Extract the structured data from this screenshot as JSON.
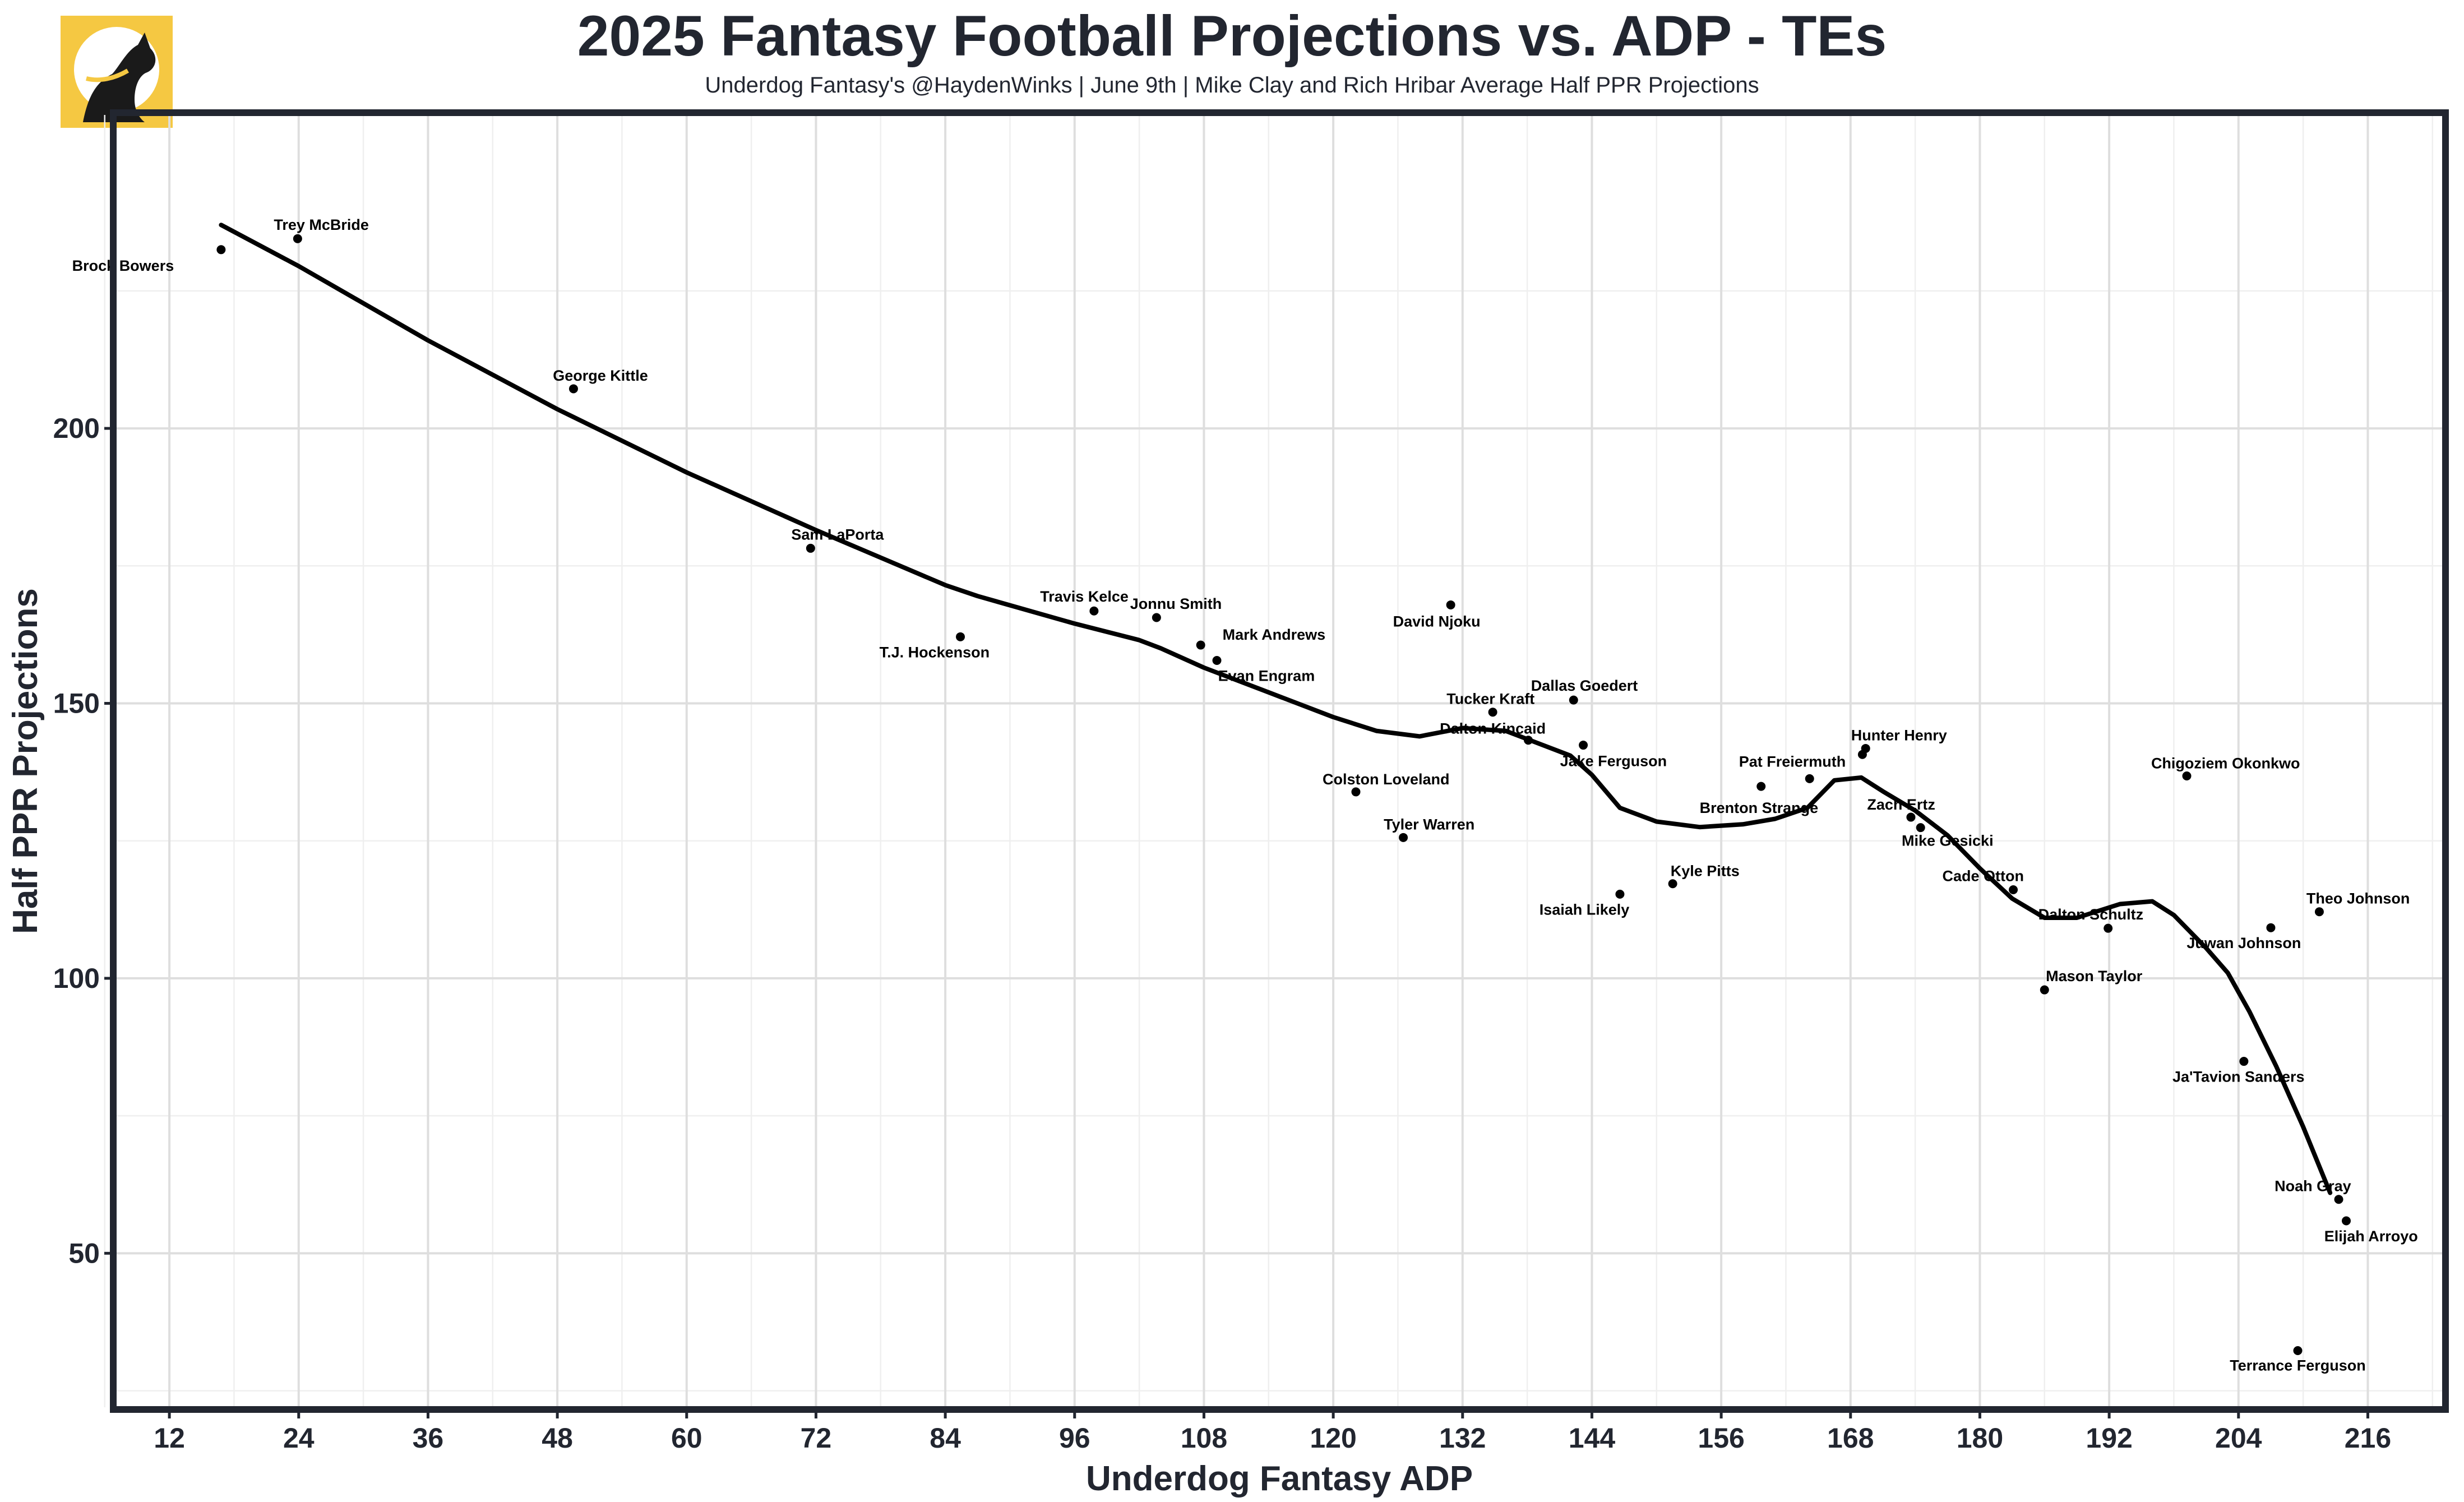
{
  "header": {
    "title": "2025 Fantasy Football Projections vs. ADP - TEs",
    "subtitle": "Underdog Fantasy's @HaydenWinks | June 9th | Mike Clay and Rich Hribar Average Half PPR Projections"
  },
  "logo": {
    "icon": "dog-head-icon",
    "background": "#f5c842",
    "foreground": "#1a1a1a"
  },
  "colors": {
    "frame": "#222630",
    "grid_major": "#dedede",
    "grid_minor": "#efefef",
    "points": "#000000",
    "trend": "#000000"
  },
  "chart_data": {
    "type": "scatter",
    "xlabel": "Underdog Fantasy ADP",
    "ylabel": "Half PPR Projections",
    "xlim": [
      7,
      223
    ],
    "ylim": [
      22,
      257
    ],
    "x_ticks": [
      12,
      24,
      36,
      48,
      60,
      72,
      84,
      96,
      108,
      120,
      132,
      144,
      156,
      168,
      180,
      192,
      204,
      216
    ],
    "y_ticks": [
      50,
      100,
      150,
      200
    ],
    "grid": true,
    "points": [
      {
        "name": "Brock Bowers",
        "x": 16.8,
        "y": 232.5
      },
      {
        "name": "Trey McBride",
        "x": 23.9,
        "y": 234.5
      },
      {
        "name": "George Kittle",
        "x": 49.5,
        "y": 207.2
      },
      {
        "name": "Sam LaPorta",
        "x": 71.5,
        "y": 178.2
      },
      {
        "name": "T.J. Hockenson",
        "x": 85.4,
        "y": 162.1
      },
      {
        "name": "Travis Kelce",
        "x": 97.8,
        "y": 166.8
      },
      {
        "name": "Jonnu Smith",
        "x": 103.6,
        "y": 165.6
      },
      {
        "name": "Mark Andrews",
        "x": 107.7,
        "y": 160.6
      },
      {
        "name": "Evan Engram",
        "x": 109.2,
        "y": 157.8
      },
      {
        "name": "David Njoku",
        "x": 130.9,
        "y": 167.9
      },
      {
        "name": "Colston Loveland",
        "x": 122.1,
        "y": 133.9
      },
      {
        "name": "Tyler Warren",
        "x": 126.5,
        "y": 125.6
      },
      {
        "name": "Tucker Kraft",
        "x": 134.8,
        "y": 148.4
      },
      {
        "name": "Dallas Goedert",
        "x": 142.3,
        "y": 150.6
      },
      {
        "name": "Dalton Kincaid",
        "x": 138.1,
        "y": 143.3
      },
      {
        "name": "Jake Ferguson",
        "x": 143.2,
        "y": 142.4
      },
      {
        "name": "Isaiah Likely",
        "x": 146.6,
        "y": 115.3
      },
      {
        "name": "Kyle Pitts",
        "x": 151.5,
        "y": 117.2
      },
      {
        "name": "Pat Freiermuth",
        "x": 159.7,
        "y": 134.9
      },
      {
        "name": "Brenton Strange",
        "x": 164.2,
        "y": 136.3
      },
      {
        "name": "Hunter Henry",
        "x": 169.4,
        "y": 141.8
      },
      {
        "name": "Hunter Henry 2",
        "x": 169.1,
        "y": 140.7
      },
      {
        "name": "Zach Ertz",
        "x": 173.6,
        "y": 129.3
      },
      {
        "name": "Mike Gesicki",
        "x": 174.5,
        "y": 127.4
      },
      {
        "name": "Cade Otton",
        "x": 183.1,
        "y": 116.1
      },
      {
        "name": "Dalton Schultz",
        "x": 191.9,
        "y": 109.1
      },
      {
        "name": "Mason Taylor",
        "x": 186.0,
        "y": 97.9
      },
      {
        "name": "Chigoziem Okonkwo",
        "x": 199.2,
        "y": 136.8
      },
      {
        "name": "Juwan Johnson",
        "x": 207.0,
        "y": 109.2
      },
      {
        "name": "Theo Johnson",
        "x": 211.5,
        "y": 112.1
      },
      {
        "name": "Ja'Tavion Sanders",
        "x": 204.5,
        "y": 84.9
      },
      {
        "name": "Noah Gray",
        "x": 213.3,
        "y": 59.8
      },
      {
        "name": "Elijah Arroyo",
        "x": 214.0,
        "y": 55.9
      },
      {
        "name": "Terrance Ferguson",
        "x": 209.5,
        "y": 32.3
      }
    ],
    "labels": [
      {
        "text": "Brock Bowers",
        "x": 7.7,
        "y": 229.6
      },
      {
        "text": "Trey McBride",
        "x": 26.1,
        "y": 237.0
      },
      {
        "text": "George Kittle",
        "x": 52.0,
        "y": 209.6
      },
      {
        "text": "Sam LaPorta",
        "x": 74.0,
        "y": 180.7
      },
      {
        "text": "T.J. Hockenson",
        "x": 83.0,
        "y": 159.3
      },
      {
        "text": "Travis Kelce",
        "x": 96.9,
        "y": 169.4
      },
      {
        "text": "Jonnu Smith",
        "x": 105.4,
        "y": 168.1
      },
      {
        "text": "Mark Andrews",
        "x": 114.5,
        "y": 162.5
      },
      {
        "text": "Evan Engram",
        "x": 113.8,
        "y": 155.0
      },
      {
        "text": "David Njoku",
        "x": 129.6,
        "y": 164.9
      },
      {
        "text": "Colston Loveland",
        "x": 124.9,
        "y": 136.2
      },
      {
        "text": "Tyler Warren",
        "x": 128.9,
        "y": 128.0
      },
      {
        "text": "Tucker Kraft",
        "x": 134.6,
        "y": 150.8
      },
      {
        "text": "Dallas Goedert",
        "x": 143.3,
        "y": 153.2
      },
      {
        "text": "Dalton Kincaid",
        "x": 134.8,
        "y": 145.4
      },
      {
        "text": "Jake Ferguson",
        "x": 146.0,
        "y": 139.5
      },
      {
        "text": "Isaiah Likely",
        "x": 143.3,
        "y": 112.5
      },
      {
        "text": "Kyle Pitts",
        "x": 154.5,
        "y": 119.5
      },
      {
        "text": "Pat Freiermuth",
        "x": 162.6,
        "y": 139.4
      },
      {
        "text": "Brenton Strange",
        "x": 159.5,
        "y": 131.0
      },
      {
        "text": "Hunter Henry",
        "x": 172.5,
        "y": 144.2
      },
      {
        "text": "Zach Ertz",
        "x": 172.7,
        "y": 131.6
      },
      {
        "text": "Mike Gesicki",
        "x": 177.0,
        "y": 125.0
      },
      {
        "text": "Cade Otton",
        "x": 180.3,
        "y": 118.6
      },
      {
        "text": "Dalton Schultz",
        "x": 190.3,
        "y": 111.6
      },
      {
        "text": "Mason Taylor",
        "x": 190.6,
        "y": 100.4
      },
      {
        "text": "Chigoziem Okonkwo",
        "x": 202.8,
        "y": 139.1
      },
      {
        "text": "Juwan Johnson",
        "x": 204.5,
        "y": 106.4
      },
      {
        "text": "Theo Johnson",
        "x": 215.1,
        "y": 114.5
      },
      {
        "text": "Ja'Tavion Sanders",
        "x": 204.0,
        "y": 82.1
      },
      {
        "text": "Noah Gray",
        "x": 210.9,
        "y": 62.2
      },
      {
        "text": "Elijah Arroyo",
        "x": 216.3,
        "y": 53.1
      },
      {
        "text": "Terrance Ferguson",
        "x": 209.5,
        "y": 29.6
      }
    ],
    "trend": [
      [
        16.8,
        237.0
      ],
      [
        24,
        229.5
      ],
      [
        36,
        216.0
      ],
      [
        48,
        203.5
      ],
      [
        60,
        192.0
      ],
      [
        72,
        181.5
      ],
      [
        84,
        171.5
      ],
      [
        87,
        169.5
      ],
      [
        96,
        164.5
      ],
      [
        102,
        161.5
      ],
      [
        104,
        160.0
      ],
      [
        108,
        156.5
      ],
      [
        114,
        152.0
      ],
      [
        120,
        147.5
      ],
      [
        124,
        145.0
      ],
      [
        128,
        144.0
      ],
      [
        132,
        145.5
      ],
      [
        136,
        145.0
      ],
      [
        138,
        143.5
      ],
      [
        142,
        140.5
      ],
      [
        144,
        137.0
      ],
      [
        146.6,
        131.0
      ],
      [
        150,
        128.5
      ],
      [
        154,
        127.5
      ],
      [
        158,
        128.0
      ],
      [
        161,
        129.0
      ],
      [
        164,
        131.0
      ],
      [
        166.5,
        136.0
      ],
      [
        169,
        136.5
      ],
      [
        171,
        134.0
      ],
      [
        174,
        130.5
      ],
      [
        177,
        126.0
      ],
      [
        180,
        120.0
      ],
      [
        183,
        114.5
      ],
      [
        186,
        111.0
      ],
      [
        189,
        111.0
      ],
      [
        193,
        113.5
      ],
      [
        196,
        114.0
      ],
      [
        198,
        111.5
      ],
      [
        201,
        105.5
      ],
      [
        203,
        101.0
      ],
      [
        205,
        94.0
      ],
      [
        207.5,
        84.0
      ],
      [
        210,
        73.0
      ],
      [
        212.5,
        61.0
      ]
    ]
  }
}
